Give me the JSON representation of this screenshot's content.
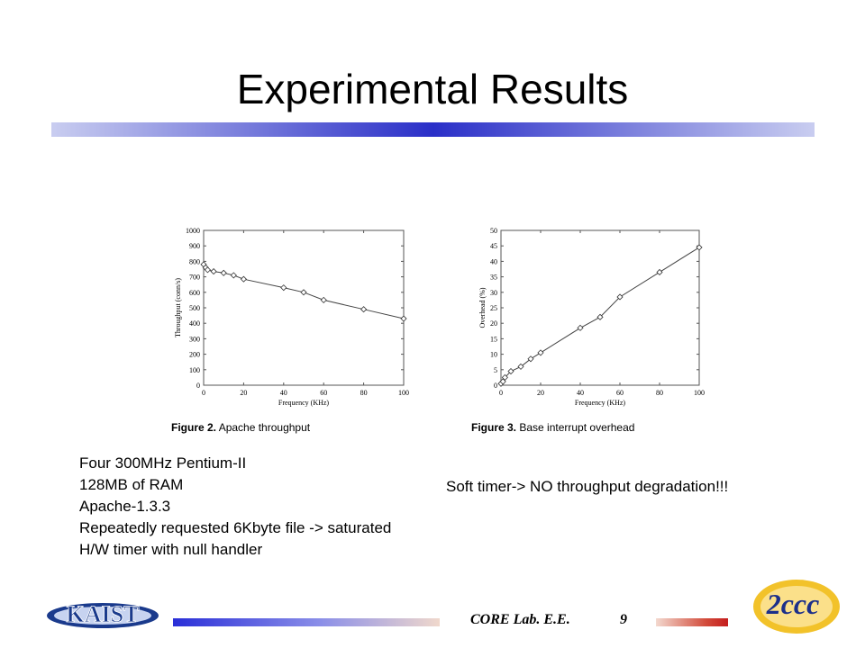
{
  "slide": {
    "title": "Experimental Results",
    "specs": [
      "Four 300MHz Pentium-II",
      "128MB of RAM",
      "Apache-1.3.3",
      "Repeatedly requested 6Kbyte file -> saturated",
      "H/W timer with null handler"
    ],
    "note": "Soft timer-> NO throughput degradation!!!",
    "footer": {
      "lab": "CORE Lab. E.E.",
      "page": "9"
    },
    "logos": {
      "left": "KAIST",
      "right": "2ccc"
    },
    "colors": {
      "title_bar": "#2a2fc8",
      "footer_bar_left": "#2a2fd8",
      "footer_bar_right": "#c51e1e"
    }
  },
  "chart_data": [
    {
      "type": "line",
      "caption_num": "Figure 2.",
      "caption_text": "Apache throughput",
      "xlabel": "Frequency (KHz)",
      "ylabel": "Throughput (conn/s)",
      "xlim": [
        0,
        100
      ],
      "ylim": [
        0,
        1000
      ],
      "xticks": [
        0,
        20,
        40,
        60,
        80,
        100
      ],
      "yticks": [
        0,
        100,
        200,
        300,
        400,
        500,
        600,
        700,
        800,
        900,
        1000
      ],
      "grid": false,
      "marker": "diamond",
      "x": [
        0,
        1,
        2,
        5,
        10,
        15,
        20,
        40,
        50,
        60,
        80,
        100
      ],
      "y": [
        780,
        760,
        745,
        735,
        725,
        710,
        685,
        630,
        600,
        550,
        490,
        430
      ]
    },
    {
      "type": "line",
      "caption_num": "Figure 3.",
      "caption_text": "Base interrupt overhead",
      "xlabel": "Frequency (KHz)",
      "ylabel": "Overhead (%)",
      "xlim": [
        0,
        100
      ],
      "ylim": [
        0,
        50
      ],
      "xticks": [
        0,
        20,
        40,
        60,
        80,
        100
      ],
      "yticks": [
        0,
        5,
        10,
        15,
        20,
        25,
        30,
        35,
        40,
        45,
        50
      ],
      "grid": false,
      "marker": "diamond",
      "x": [
        0,
        1,
        2,
        5,
        10,
        15,
        20,
        40,
        50,
        60,
        80,
        100
      ],
      "y": [
        0.5,
        1.2,
        2.5,
        4.5,
        6,
        8.5,
        10.5,
        18.5,
        22,
        28.5,
        36.5,
        44.5
      ]
    }
  ]
}
